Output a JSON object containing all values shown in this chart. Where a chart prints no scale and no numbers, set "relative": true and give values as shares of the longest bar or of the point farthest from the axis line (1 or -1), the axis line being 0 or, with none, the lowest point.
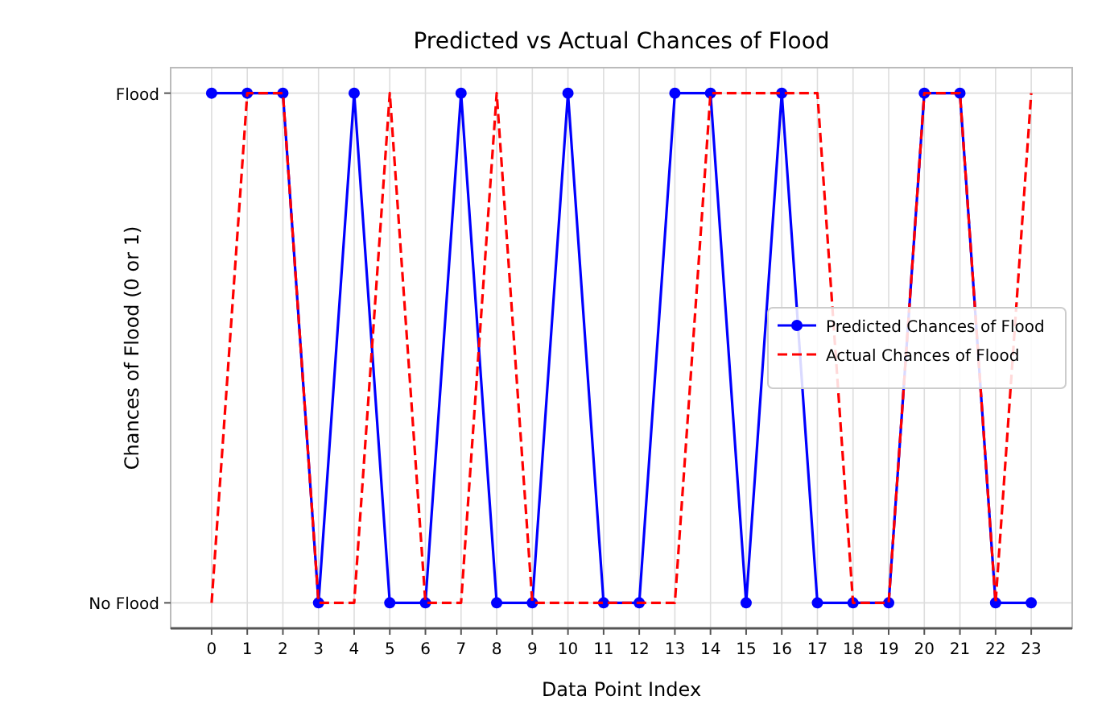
{
  "chart_data": {
    "type": "line",
    "title": "Predicted vs Actual Chances of Flood",
    "xlabel": "Data Point Index",
    "ylabel": "Chances of Flood (0 or 1)",
    "x": [
      0,
      1,
      2,
      3,
      4,
      5,
      6,
      7,
      8,
      9,
      10,
      11,
      12,
      13,
      14,
      15,
      16,
      17,
      18,
      19,
      20,
      21,
      22,
      23
    ],
    "series": [
      {
        "name": "Predicted Chances of Flood",
        "color": "#0000ff",
        "marker": "circle",
        "line_style": "solid",
        "values": [
          1,
          1,
          1,
          0,
          1,
          0,
          0,
          1,
          0,
          0,
          1,
          0,
          0,
          1,
          1,
          0,
          1,
          0,
          0,
          0,
          1,
          1,
          0,
          0
        ]
      },
      {
        "name": "Actual Chances of Flood",
        "color": "#ff0000",
        "marker": "none",
        "line_style": "dashed",
        "values": [
          0,
          1,
          1,
          0,
          0,
          1,
          0,
          0,
          1,
          0,
          0,
          0,
          0,
          0,
          1,
          1,
          1,
          1,
          0,
          0,
          1,
          1,
          0,
          1
        ]
      }
    ],
    "xlim": [
      -1.15,
      24.15
    ],
    "relative": true,
    "xticks": [
      0,
      1,
      2,
      3,
      4,
      5,
      6,
      7,
      8,
      9,
      10,
      11,
      12,
      13,
      14,
      15,
      16,
      17,
      18,
      19,
      20,
      21,
      22,
      23
    ],
    "annotations": [
      "No Flood",
      "Flood"
    ],
    "grid": true,
    "legend": "right"
  }
}
